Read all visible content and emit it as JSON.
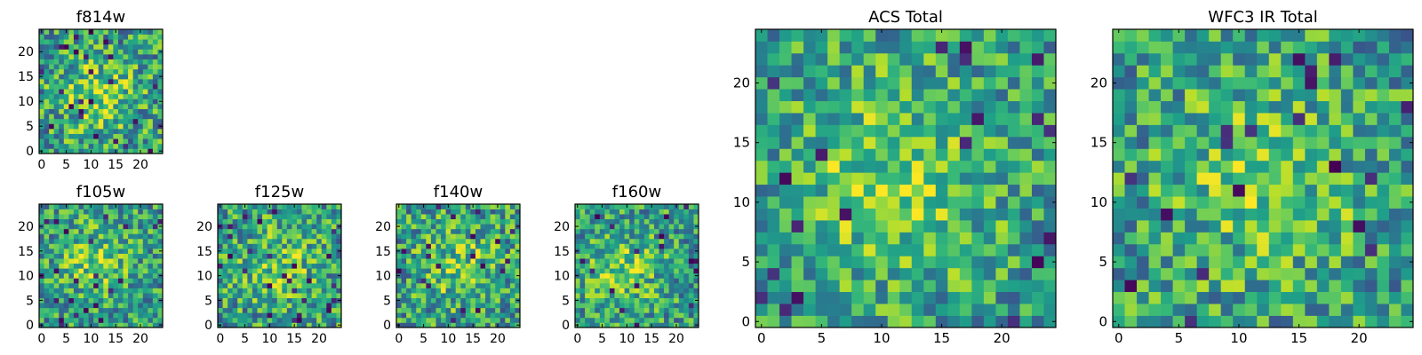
{
  "chart_data": [
    {
      "type": "heatmap",
      "title": "f814w",
      "grid_size": 25,
      "xlim": [
        -0.5,
        24.5
      ],
      "ylim": [
        -0.5,
        24.5
      ],
      "xticks": [
        0,
        5,
        10,
        15,
        20
      ],
      "yticks": [
        0,
        5,
        10,
        15,
        20
      ],
      "xtick_labels": [
        "0",
        "5",
        "10",
        "15",
        "20"
      ],
      "ytick_labels": [
        "0",
        "5",
        "10",
        "15",
        "20"
      ],
      "colormap": "viridis",
      "center": [
        11,
        11
      ],
      "peak": 0.85,
      "spread": 5.0,
      "noise": 0.33,
      "seed": 11
    },
    {
      "type": "heatmap",
      "title": "f105w",
      "grid_size": 25,
      "xlim": [
        -0.5,
        24.5
      ],
      "ylim": [
        -0.5,
        24.5
      ],
      "xticks": [
        0,
        5,
        10,
        15,
        20
      ],
      "yticks": [
        0,
        5,
        10,
        15,
        20
      ],
      "xtick_labels": [
        "0",
        "5",
        "10",
        "15",
        "20"
      ],
      "ytick_labels": [
        "0",
        "5",
        "10",
        "15",
        "20"
      ],
      "colormap": "viridis",
      "center": [
        11,
        13
      ],
      "peak": 0.8,
      "spread": 4.5,
      "noise": 0.3,
      "seed": 23
    },
    {
      "type": "heatmap",
      "title": "f125w",
      "grid_size": 25,
      "xlim": [
        -0.5,
        24.5
      ],
      "ylim": [
        -0.5,
        24.5
      ],
      "xticks": [
        0,
        5,
        10,
        15,
        20
      ],
      "yticks": [
        0,
        5,
        10,
        15,
        20
      ],
      "xtick_labels": [
        "0",
        "5",
        "10",
        "15",
        "20"
      ],
      "ytick_labels": [
        "0",
        "5",
        "10",
        "15",
        "20"
      ],
      "colormap": "viridis",
      "center": [
        12,
        12
      ],
      "peak": 0.75,
      "spread": 5.5,
      "noise": 0.32,
      "seed": 37
    },
    {
      "type": "heatmap",
      "title": "f140w",
      "grid_size": 25,
      "xlim": [
        -0.5,
        24.5
      ],
      "ylim": [
        -0.5,
        24.5
      ],
      "xticks": [
        0,
        5,
        10,
        15,
        20
      ],
      "yticks": [
        0,
        5,
        10,
        15,
        20
      ],
      "xtick_labels": [
        "0",
        "5",
        "10",
        "15",
        "20"
      ],
      "ytick_labels": [
        "0",
        "5",
        "10",
        "15",
        "20"
      ],
      "colormap": "viridis",
      "center": [
        12,
        12
      ],
      "peak": 0.75,
      "spread": 5.5,
      "noise": 0.32,
      "seed": 53
    },
    {
      "type": "heatmap",
      "title": "f160w",
      "grid_size": 25,
      "xlim": [
        -0.5,
        24.5
      ],
      "ylim": [
        -0.5,
        24.5
      ],
      "xticks": [
        0,
        5,
        10,
        15,
        20
      ],
      "yticks": [
        0,
        5,
        10,
        15,
        20
      ],
      "xtick_labels": [
        "0",
        "5",
        "10",
        "15",
        "20"
      ],
      "ytick_labels": [
        "0",
        "5",
        "10",
        "15",
        "20"
      ],
      "colormap": "viridis",
      "center": [
        9,
        11
      ],
      "peak": 0.8,
      "spread": 5.0,
      "noise": 0.3,
      "seed": 71
    },
    {
      "type": "heatmap",
      "title": "ACS Total",
      "grid_size": 25,
      "xlim": [
        -0.5,
        24.5
      ],
      "ylim": [
        -0.5,
        24.5
      ],
      "xticks": [
        0,
        5,
        10,
        15,
        20
      ],
      "yticks": [
        0,
        5,
        10,
        15,
        20
      ],
      "xtick_labels": [
        "0",
        "5",
        "10",
        "15",
        "20"
      ],
      "ytick_labels": [
        "0",
        "5",
        "10",
        "15",
        "20"
      ],
      "colormap": "viridis",
      "center": [
        11,
        12
      ],
      "peak": 0.8,
      "spread": 6.0,
      "noise": 0.28,
      "seed": 89
    },
    {
      "type": "heatmap",
      "title": "WFC3 IR Total",
      "grid_size": 25,
      "xlim": [
        -0.5,
        24.5
      ],
      "ylim": [
        -0.5,
        24.5
      ],
      "xticks": [
        0,
        5,
        10,
        15,
        20
      ],
      "yticks": [
        0,
        5,
        10,
        15,
        20
      ],
      "xtick_labels": [
        "0",
        "5",
        "10",
        "15",
        "20"
      ],
      "ytick_labels": [
        "0",
        "5",
        "10",
        "15",
        "20"
      ],
      "colormap": "viridis",
      "center": [
        12,
        12
      ],
      "peak": 0.8,
      "spread": 5.5,
      "noise": 0.3,
      "seed": 97
    }
  ]
}
